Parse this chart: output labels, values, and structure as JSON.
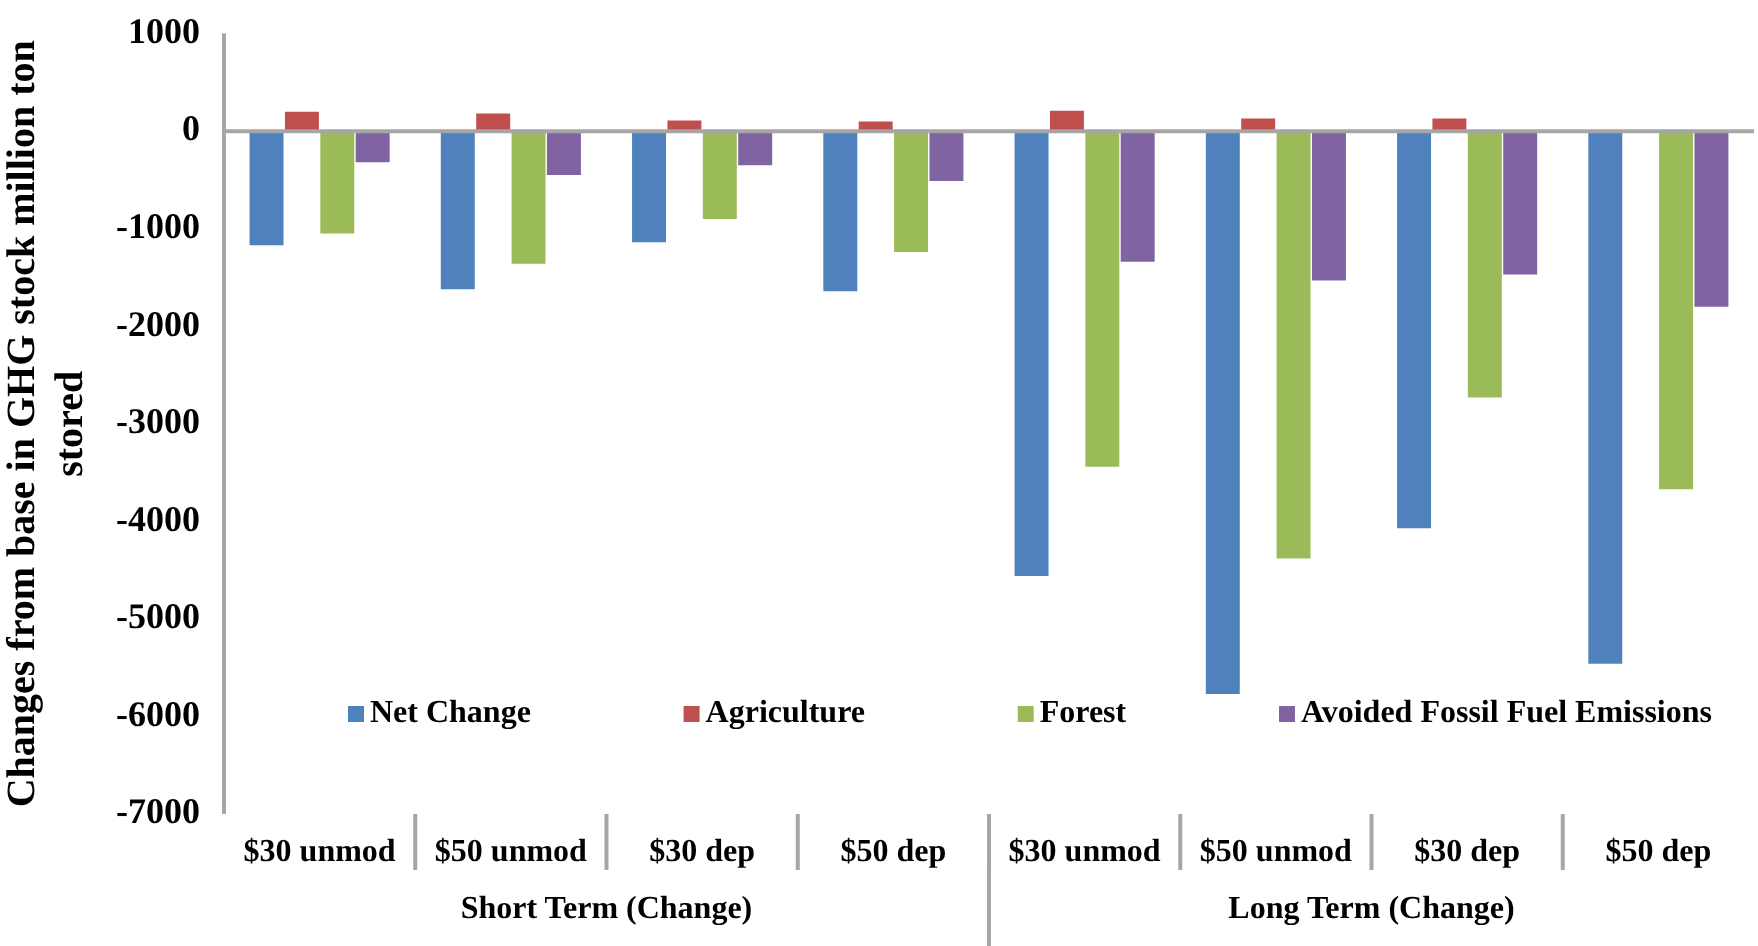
{
  "chart_data": {
    "type": "bar",
    "ylabel": "Changes from base in GHG stock million ton stored",
    "categories": [
      "$30 unmod",
      "$50 unmod",
      "$30 dep",
      "$50 dep",
      "$30 unmod",
      "$50 unmod",
      "$30 dep",
      "$50 dep"
    ],
    "series": [
      {
        "name": "Net Change",
        "color": "#4f81bd",
        "values": [
          -1170,
          -1620,
          -1140,
          -1640,
          -4560,
          -5770,
          -4070,
          -5460
        ]
      },
      {
        "name": "Agriculture",
        "color": "#c0504d",
        "values": [
          200,
          180,
          110,
          100,
          210,
          130,
          130,
          10
        ]
      },
      {
        "name": "Forest",
        "color": "#9bbb59",
        "values": [
          -1050,
          -1360,
          -900,
          -1240,
          -3440,
          -4380,
          -2730,
          -3670
        ]
      },
      {
        "name": "Avoided Fossil Fuel Emissions",
        "color": "#8064a2",
        "values": [
          -320,
          -450,
          -350,
          -510,
          -1340,
          -1530,
          -1470,
          -1800
        ]
      }
    ],
    "annotations": [
      "Short Term (Change)",
      "Long Term (Change)"
    ],
    "ylim": [
      -7000,
      1000
    ],
    "yticks": [
      -7000,
      -6000,
      -5000,
      -4000,
      -3000,
      -2000,
      -1000,
      0,
      1000
    ],
    "ref_lines": [
      {
        "axis": "y",
        "value": 0,
        "color": "#a6a6a6"
      }
    ],
    "grid": false,
    "legend": "bottom"
  }
}
